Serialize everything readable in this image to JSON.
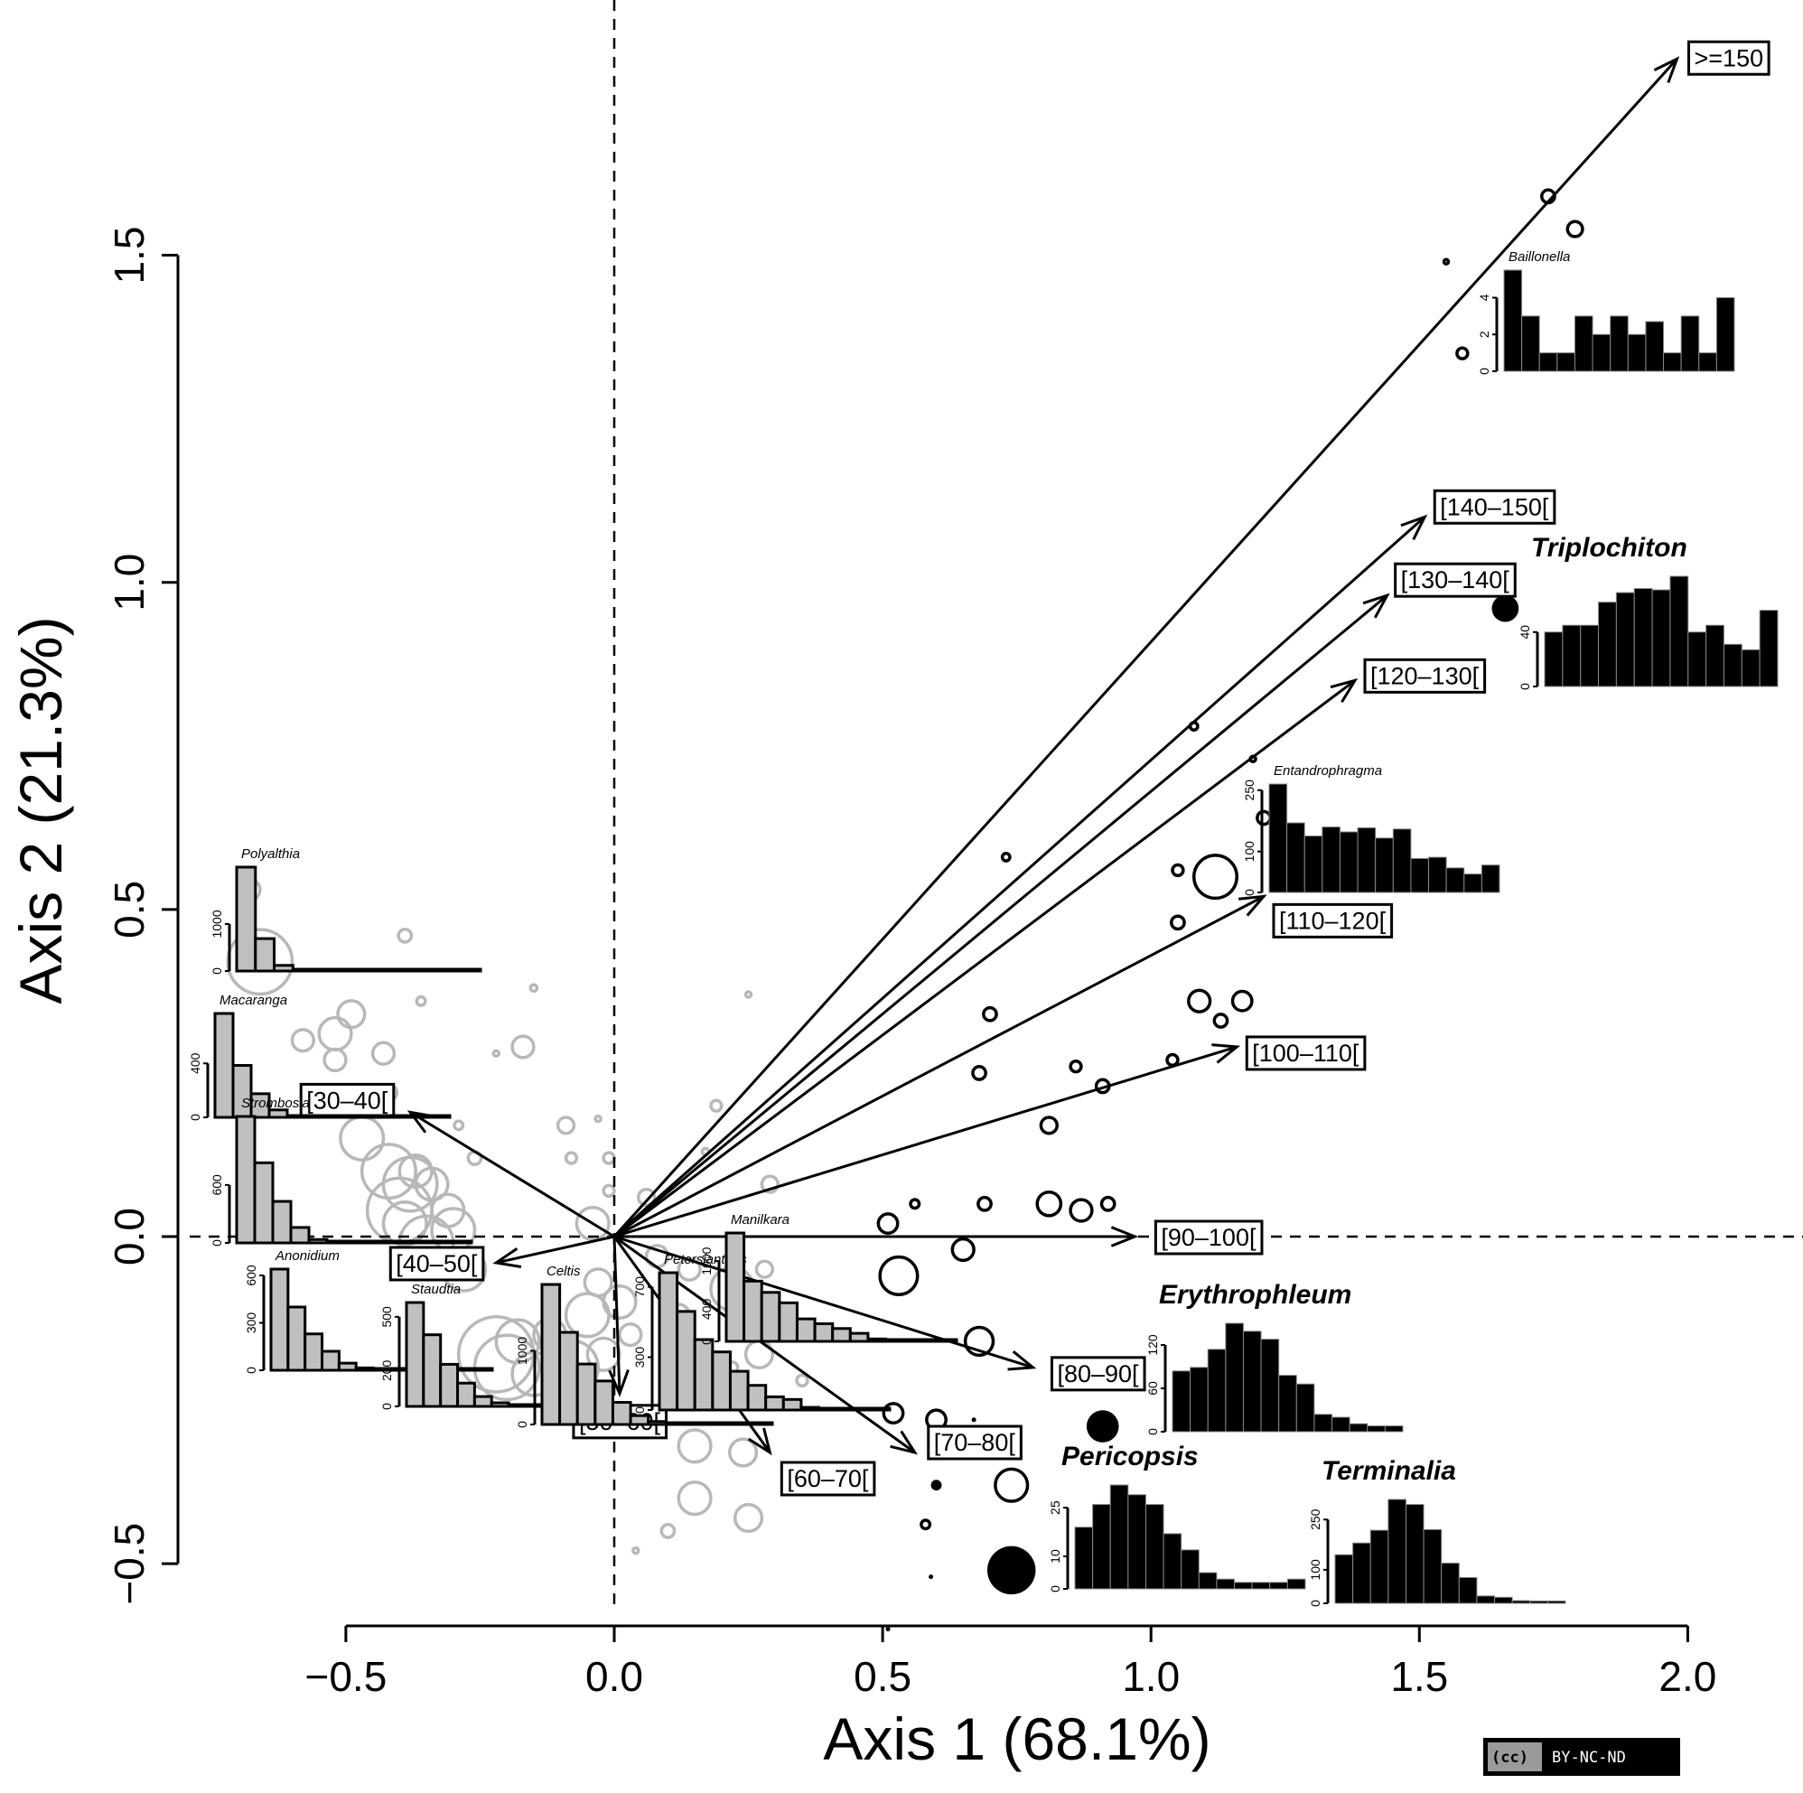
{
  "chart_data": {
    "type": "scatter",
    "subtype": "biplot",
    "title": "",
    "xlabel": "Axis 1 (68.1%)",
    "ylabel": "Axis 2 (21.3%)",
    "xlim": [
      -0.6,
      2.15
    ],
    "ylim": [
      -0.62,
      1.95
    ],
    "xticks": [
      -0.5,
      0.0,
      0.5,
      1.0,
      1.5,
      2.0
    ],
    "xtick_labels": [
      "−0.5",
      "0.0",
      "0.5",
      "1.0",
      "1.5",
      "2.0"
    ],
    "yticks": [
      -0.5,
      0.0,
      0.5,
      1.0,
      1.5
    ],
    "ytick_labels": [
      "−0.5",
      "0.0",
      "0.5",
      "1.0",
      "1.5"
    ],
    "reference_lines": {
      "x": 0,
      "y": 0,
      "style": "dashed"
    },
    "grid": false,
    "arrows": [
      {
        "label": ">=150",
        "x": 1.98,
        "y": 1.8
      },
      {
        "label": "[140–150[",
        "x": 1.51,
        "y": 1.1
      },
      {
        "label": "[130–140[",
        "x": 1.44,
        "y": 0.98
      },
      {
        "label": "[120–130[",
        "x": 1.38,
        "y": 0.85
      },
      {
        "label": "[110–120[",
        "x": 1.21,
        "y": 0.52
      },
      {
        "label": "[100–110[",
        "x": 1.16,
        "y": 0.29
      },
      {
        "label": "[90–100[",
        "x": 0.97,
        "y": 0.0
      },
      {
        "label": "[80–90[",
        "x": 0.78,
        "y": -0.2
      },
      {
        "label": "[70–80[",
        "x": 0.56,
        "y": -0.33
      },
      {
        "label": "[60–70[",
        "x": 0.29,
        "y": -0.33
      },
      {
        "label": "[50–60[",
        "x": 0.01,
        "y": -0.24
      },
      {
        "label": "[40–50[",
        "x": -0.22,
        "y": -0.04
      },
      {
        "label": "[30–40[",
        "x": -0.38,
        "y": 0.19
      }
    ],
    "points_gray": [
      [
        -0.68,
        0.53,
        0.02
      ],
      [
        -0.66,
        0.42,
        0.06
      ],
      [
        -0.58,
        0.3,
        0.02
      ],
      [
        -0.52,
        0.31,
        0.03
      ],
      [
        -0.49,
        0.34,
        0.025
      ],
      [
        -0.52,
        0.27,
        0.02
      ],
      [
        -0.43,
        0.28,
        0.02
      ],
      [
        -0.42,
        0.22,
        0.015
      ],
      [
        -0.39,
        0.46,
        0.012
      ],
      [
        -0.36,
        0.36,
        0.008
      ],
      [
        -0.29,
        0.17,
        0.008
      ],
      [
        -0.26,
        0.12,
        0.012
      ],
      [
        -0.22,
        0.28,
        0.005
      ],
      [
        -0.15,
        0.38,
        0.006
      ],
      [
        -0.17,
        0.29,
        0.02
      ],
      [
        -0.47,
        0.15,
        0.04
      ],
      [
        -0.42,
        0.1,
        0.05
      ],
      [
        -0.38,
        0.08,
        0.05
      ],
      [
        -0.4,
        0.04,
        0.06
      ],
      [
        -0.37,
        0.1,
        0.03
      ],
      [
        -0.39,
        0.02,
        0.04
      ],
      [
        -0.34,
        0.08,
        0.03
      ],
      [
        -0.31,
        0.04,
        0.03
      ],
      [
        -0.3,
        0.01,
        0.04
      ],
      [
        -0.35,
        -0.01,
        0.05
      ],
      [
        -0.28,
        -0.05,
        0.04
      ],
      [
        -0.22,
        -0.18,
        0.07
      ],
      [
        -0.2,
        -0.2,
        0.06
      ],
      [
        -0.18,
        -0.16,
        0.04
      ],
      [
        -0.15,
        -0.21,
        0.04
      ],
      [
        -0.12,
        -0.15,
        0.03
      ],
      [
        -0.1,
        -0.23,
        0.03
      ],
      [
        -0.08,
        -0.2,
        0.05
      ],
      [
        -0.05,
        -0.12,
        0.04
      ],
      [
        -0.03,
        -0.07,
        0.025
      ],
      [
        -0.02,
        -0.18,
        0.03
      ],
      [
        0.01,
        -0.1,
        0.03
      ],
      [
        0.03,
        -0.15,
        0.02
      ],
      [
        -0.04,
        0.02,
        0.03
      ],
      [
        -0.09,
        0.17,
        0.015
      ],
      [
        -0.08,
        0.12,
        0.01
      ],
      [
        -0.03,
        0.18,
        0.005
      ],
      [
        -0.01,
        0.07,
        0.01
      ],
      [
        -0.01,
        0.12,
        0.01
      ],
      [
        0.06,
        0.06,
        0.015
      ],
      [
        0.14,
        -0.05,
        0.02
      ],
      [
        0.19,
        0.2,
        0.01
      ],
      [
        0.29,
        0.08,
        0.015
      ],
      [
        0.25,
        0.37,
        0.005
      ],
      [
        0.17,
        0.13,
        0.006
      ],
      [
        0.08,
        -0.03,
        0.02
      ],
      [
        0.12,
        -0.12,
        0.02
      ],
      [
        0.22,
        -0.08,
        0.04
      ],
      [
        0.28,
        -0.05,
        0.015
      ],
      [
        0.27,
        -0.18,
        0.025
      ],
      [
        0.15,
        -0.32,
        0.03
      ],
      [
        0.24,
        -0.33,
        0.025
      ],
      [
        0.15,
        -0.4,
        0.03
      ],
      [
        0.25,
        -0.43,
        0.025
      ],
      [
        0.1,
        -0.45,
        0.012
      ],
      [
        0.04,
        -0.48,
        0.005
      ],
      [
        0.22,
        -0.2,
        0.01
      ],
      [
        0.35,
        -0.22,
        0.01
      ],
      [
        0.38,
        -0.15,
        0.008
      ]
    ],
    "points_black_open": [
      [
        1.74,
        1.59,
        0.012
      ],
      [
        1.79,
        1.54,
        0.014
      ],
      [
        1.58,
        1.35,
        0.01
      ],
      [
        1.55,
        1.49,
        0.004
      ],
      [
        1.08,
        0.78,
        0.007
      ],
      [
        1.19,
        0.73,
        0.005
      ],
      [
        1.21,
        0.64,
        0.012
      ],
      [
        1.12,
        0.55,
        0.04
      ],
      [
        1.05,
        0.56,
        0.01
      ],
      [
        1.05,
        0.48,
        0.012
      ],
      [
        0.73,
        0.58,
        0.007
      ],
      [
        0.7,
        0.34,
        0.012
      ],
      [
        0.68,
        0.25,
        0.012
      ],
      [
        0.81,
        0.17,
        0.015
      ],
      [
        0.86,
        0.26,
        0.01
      ],
      [
        0.91,
        0.23,
        0.012
      ],
      [
        1.04,
        0.27,
        0.01
      ],
      [
        1.09,
        0.36,
        0.02
      ],
      [
        1.13,
        0.33,
        0.012
      ],
      [
        1.17,
        0.36,
        0.018
      ],
      [
        0.69,
        0.05,
        0.012
      ],
      [
        0.81,
        0.05,
        0.022
      ],
      [
        0.87,
        0.04,
        0.02
      ],
      [
        0.92,
        0.05,
        0.012
      ],
      [
        0.56,
        0.05,
        0.008
      ],
      [
        0.51,
        0.02,
        0.018
      ],
      [
        0.53,
        -0.06,
        0.035
      ],
      [
        0.65,
        -0.02,
        0.02
      ],
      [
        0.68,
        -0.16,
        0.026
      ],
      [
        0.52,
        -0.27,
        0.018
      ],
      [
        0.6,
        -0.28,
        0.018
      ],
      [
        0.74,
        -0.38,
        0.03
      ],
      [
        0.58,
        -0.44,
        0.008
      ]
    ],
    "points_black_filled": [
      [
        1.66,
        0.96,
        0.025
      ],
      [
        0.91,
        -0.29,
        0.03
      ],
      [
        0.74,
        -0.51,
        0.045
      ],
      [
        0.6,
        -0.38,
        0.01
      ],
      [
        0.67,
        -0.28,
        0.004
      ],
      [
        0.59,
        -0.52,
        0.004
      ],
      [
        0.51,
        -0.6,
        0.004
      ]
    ],
    "histograms": [
      {
        "name": "Polyalthia",
        "style": "gray-small",
        "ymax_tick": 1000,
        "yticks": [
          0,
          1000
        ],
        "values": [
          2210,
          690,
          120,
          10,
          3,
          2,
          2,
          2,
          2,
          2,
          2,
          2,
          2
        ]
      },
      {
        "name": "Macaranga",
        "style": "gray-small",
        "ymax_tick": 400,
        "yticks": [
          0,
          400
        ],
        "values": [
          770,
          385,
          175,
          55,
          10,
          3,
          2,
          2,
          2,
          2,
          2,
          2,
          2
        ]
      },
      {
        "name": "Strombosia",
        "style": "gray-small",
        "ymax_tick": 600,
        "yticks": [
          0,
          600
        ],
        "values": [
          1310,
          830,
          430,
          160,
          35,
          10,
          3,
          2,
          2,
          2,
          2,
          2,
          2
        ]
      },
      {
        "name": "Anonidium",
        "style": "gray-small",
        "ymax_tick": 600,
        "yticks": [
          0,
          300,
          600
        ],
        "values": [
          640,
          400,
          230,
          120,
          45,
          15,
          5,
          2,
          2,
          2,
          2,
          2,
          2
        ]
      },
      {
        "name": "Staudtia",
        "style": "gray-small",
        "ymax_tick": 500,
        "yticks": [
          0,
          200,
          500
        ],
        "values": [
          580,
          400,
          235,
          130,
          55,
          20,
          5,
          2,
          2,
          2,
          2,
          2,
          2
        ]
      },
      {
        "name": "Celtis",
        "style": "gray-small",
        "ymax_tick": 1000,
        "yticks": [
          0,
          1000
        ],
        "values": [
          1900,
          1250,
          820,
          590,
          300,
          120,
          40,
          10,
          5,
          2,
          2,
          2,
          2
        ]
      },
      {
        "name": "Petersianthus",
        "style": "gray-small",
        "ymax_tick": 700,
        "yticks": [
          0,
          300,
          700
        ],
        "values": [
          780,
          560,
          400,
          330,
          220,
          140,
          75,
          60,
          15,
          10,
          5,
          5,
          5
        ]
      },
      {
        "name": "Manilkara",
        "style": "gray-small",
        "ymax_tick": 1000,
        "yticks": [
          0,
          400,
          1000
        ],
        "values": [
          1350,
          750,
          610,
          480,
          280,
          220,
          160,
          100,
          30,
          15,
          10,
          10,
          10
        ]
      },
      {
        "name": "Baillonella",
        "style": "black-small",
        "ymax_tick": 4,
        "yticks": [
          0,
          2,
          4
        ],
        "values": [
          5.5,
          3,
          1,
          1,
          3,
          2,
          3,
          2,
          2.7,
          1,
          3,
          1,
          4
        ]
      },
      {
        "name": "Entandrophragma",
        "style": "black-small",
        "ymax_tick": 250,
        "yticks": [
          0,
          100,
          250
        ],
        "values": [
          265,
          170,
          138,
          160,
          148,
          158,
          133,
          155,
          83,
          86,
          60,
          45,
          67
        ]
      },
      {
        "name": "Triplochiton",
        "style": "black-big",
        "ymax_tick": 40,
        "yticks": [
          0,
          40
        ],
        "values": [
          40,
          45,
          45,
          62,
          69,
          72,
          71,
          81,
          40,
          45,
          31,
          27,
          56
        ]
      },
      {
        "name": "Erythrophleum",
        "style": "black-big",
        "ymax_tick": 120,
        "yticks": [
          0,
          60,
          120
        ],
        "values": [
          84,
          89,
          114,
          150,
          139,
          128,
          78,
          66,
          24,
          20,
          11,
          8,
          8
        ]
      },
      {
        "name": "Pericopsis",
        "style": "black-big",
        "ymax_tick": 25,
        "yticks": [
          0,
          10,
          25
        ],
        "values": [
          19,
          26,
          32,
          29,
          26,
          17,
          12,
          5,
          3,
          2,
          2,
          2,
          3
        ]
      },
      {
        "name": "Terminalia",
        "style": "black-big",
        "ymax_tick": 250,
        "yticks": [
          0,
          100,
          250
        ],
        "values": [
          145,
          180,
          218,
          310,
          295,
          220,
          120,
          77,
          22,
          18,
          8,
          7,
          7
        ]
      }
    ]
  },
  "license_badge": {
    "cc": "(cc)",
    "text": "BY-NC-ND"
  }
}
